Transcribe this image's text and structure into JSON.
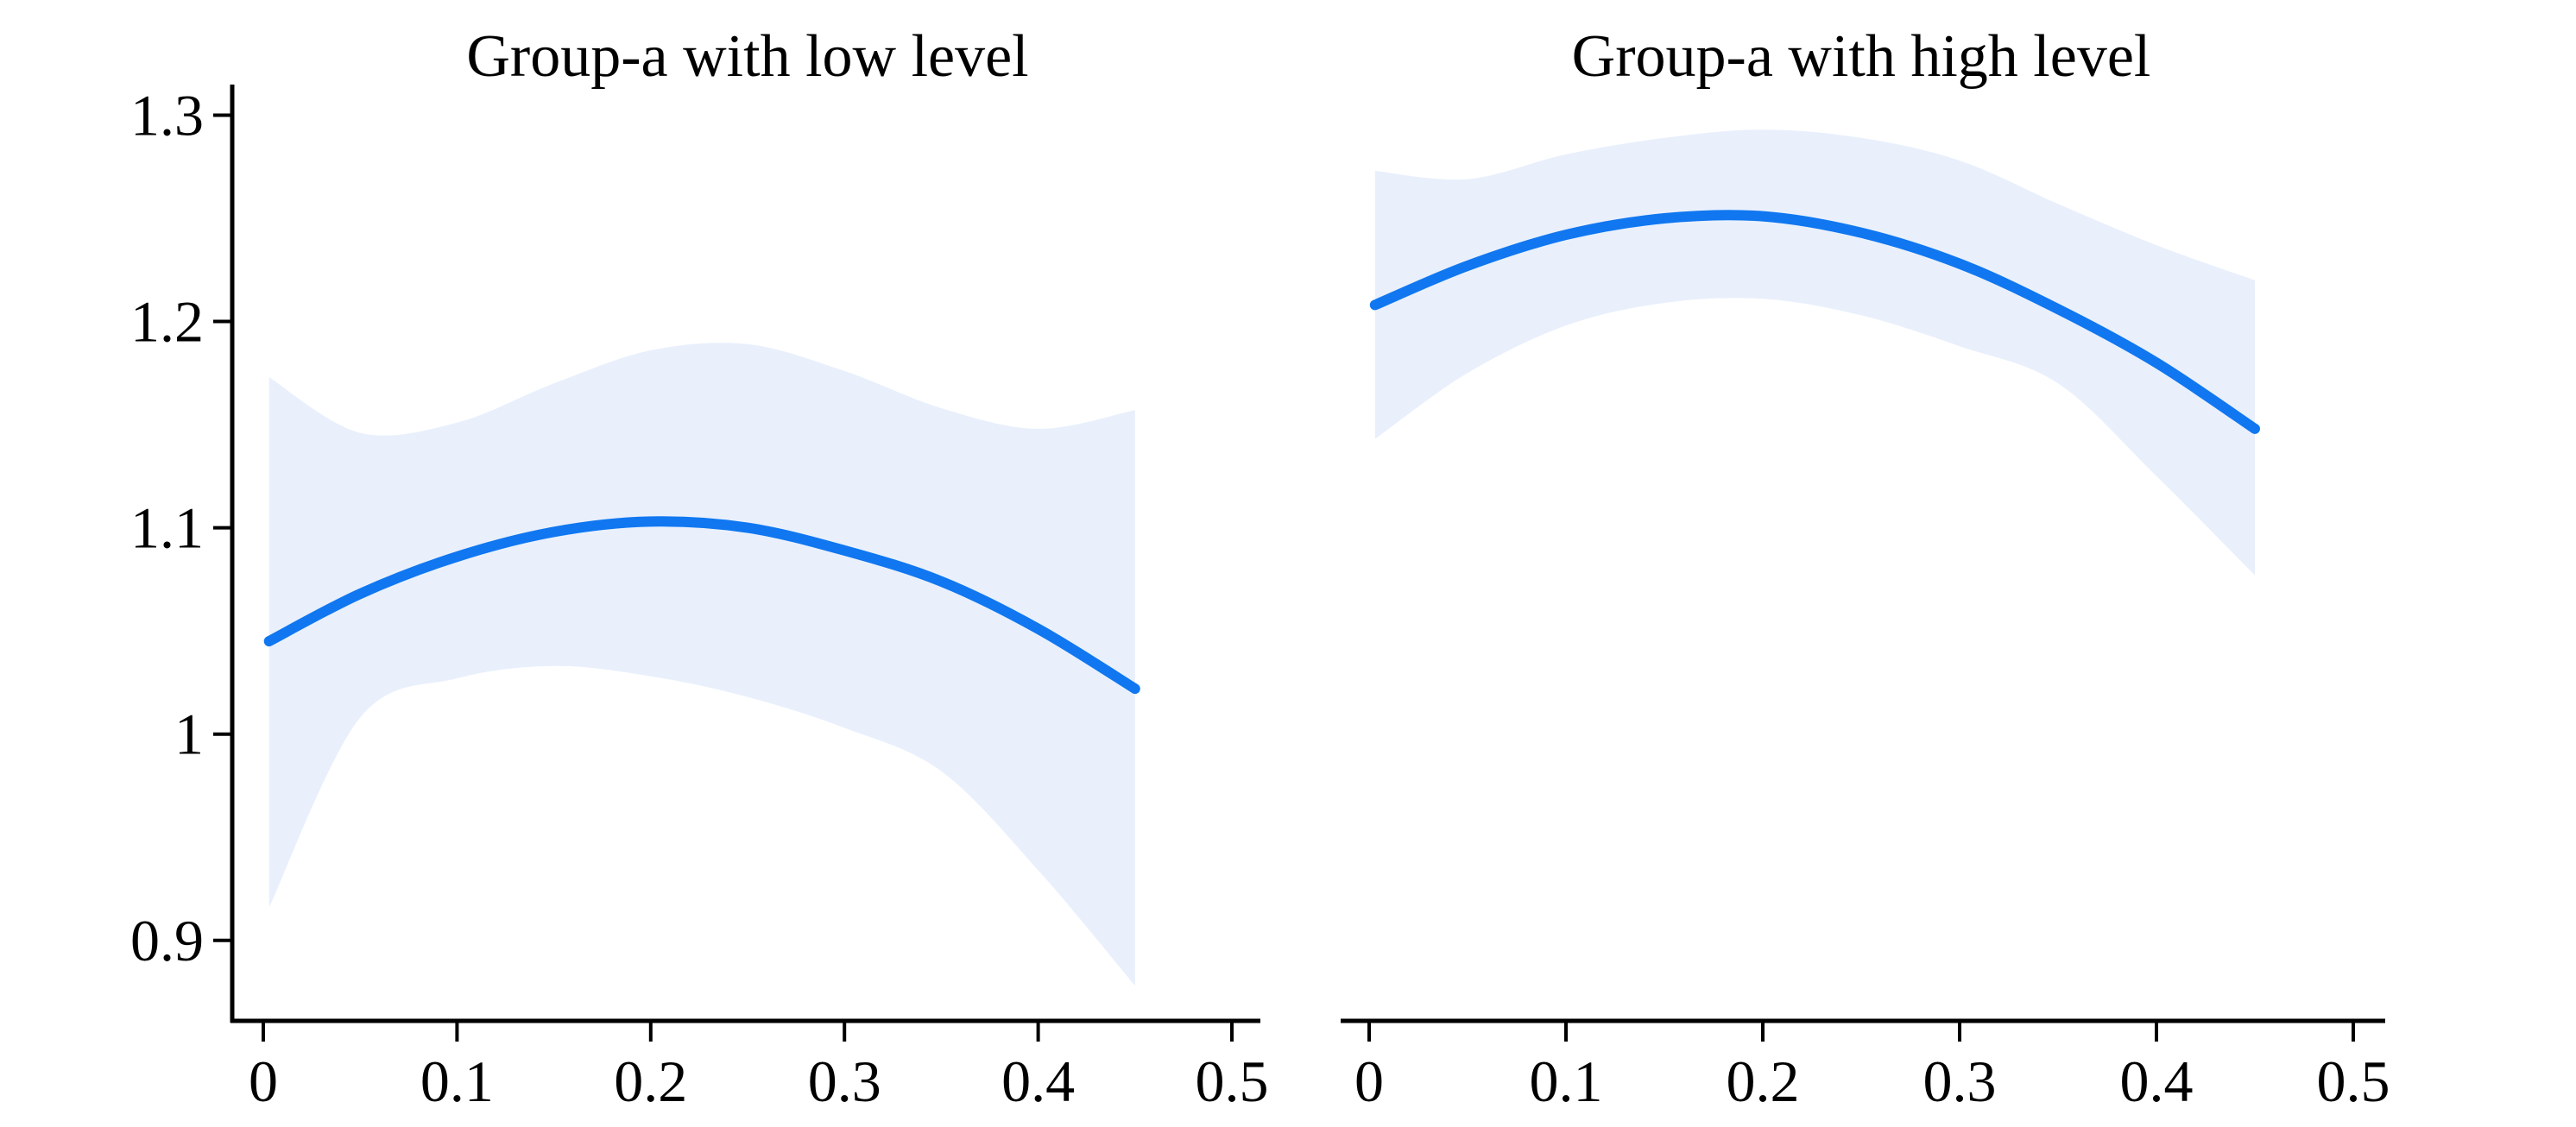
{
  "styles": {
    "line_color": "#1077F0",
    "band_color": "#E9F0FC",
    "axis_color": "#000000",
    "background": "#FFFFFF"
  },
  "chart_data": [
    {
      "type": "line",
      "title": "Group-a with low level",
      "x": [
        0.003,
        0.05,
        0.1,
        0.15,
        0.2,
        0.25,
        0.3,
        0.35,
        0.4,
        0.45
      ],
      "series": [
        {
          "name": "fit",
          "values": [
            1.045,
            1.068,
            1.086,
            1.098,
            1.103,
            1.1,
            1.089,
            1.074,
            1.051,
            1.022
          ]
        },
        {
          "name": "ci_upper",
          "values": [
            1.173,
            1.146,
            1.151,
            1.17,
            1.186,
            1.189,
            1.176,
            1.158,
            1.148,
            1.157
          ]
        },
        {
          "name": "ci_lower",
          "values": [
            0.916,
            1.008,
            1.027,
            1.033,
            1.028,
            1.018,
            1.003,
            0.982,
            0.934,
            0.878
          ]
        }
      ],
      "xtick_values": [
        0,
        0.1,
        0.2,
        0.3,
        0.4,
        0.5
      ],
      "xtick_labels": [
        "0",
        "0.1",
        "0.2",
        "0.3",
        "0.4",
        "0.5"
      ],
      "ytick_values": [
        1.3,
        1.2,
        1.1,
        1.0,
        0.9
      ],
      "ytick_labels": [
        "1.3",
        "1.2",
        "1.1",
        "1",
        "0.9"
      ],
      "xlim": [
        0,
        0.5
      ],
      "ylim": [
        0.861,
        1.314
      ],
      "grid": false,
      "legend": "none",
      "y_axis_shown": true,
      "xlabel": "",
      "ylabel": ""
    },
    {
      "type": "line",
      "title": "Group-a with high level",
      "x": [
        0.003,
        0.05,
        0.1,
        0.15,
        0.2,
        0.25,
        0.3,
        0.35,
        0.4,
        0.45
      ],
      "series": [
        {
          "name": "fit",
          "values": [
            1.208,
            1.227,
            1.242,
            1.25,
            1.251,
            1.243,
            1.228,
            1.206,
            1.18,
            1.148
          ]
        },
        {
          "name": "ci_upper",
          "values": [
            1.273,
            1.269,
            1.281,
            1.289,
            1.293,
            1.289,
            1.278,
            1.257,
            1.237,
            1.22
          ]
        },
        {
          "name": "ci_lower",
          "values": [
            1.143,
            1.175,
            1.198,
            1.209,
            1.211,
            1.203,
            1.188,
            1.17,
            1.125,
            1.077
          ]
        }
      ],
      "xtick_values": [
        0,
        0.1,
        0.2,
        0.3,
        0.4,
        0.5
      ],
      "xtick_labels": [
        "0",
        "0.1",
        "0.2",
        "0.3",
        "0.4",
        "0.5"
      ],
      "ytick_values": [],
      "ytick_labels": [],
      "xlim": [
        0,
        0.5
      ],
      "ylim": [
        0.861,
        1.314
      ],
      "grid": false,
      "legend": "none",
      "y_axis_shown": false,
      "xlabel": "",
      "ylabel": ""
    }
  ]
}
